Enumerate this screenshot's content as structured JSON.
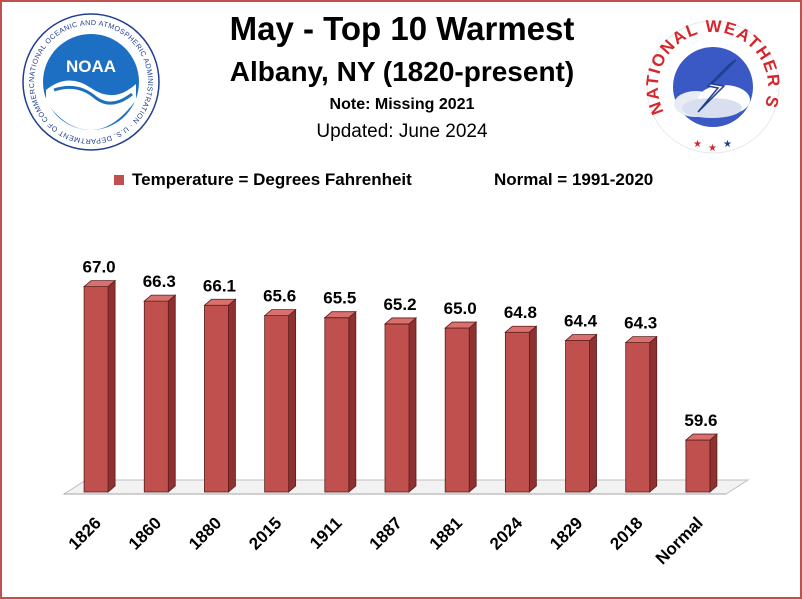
{
  "header": {
    "title": "May - Top 10 Warmest",
    "subtitle": "Albany, NY (1820-present)",
    "note": "Note: Missing 2021",
    "updated": "Updated:  June 2024"
  },
  "logos": {
    "noaa_text": "NOAA",
    "noaa_ring_text": "NATIONAL OCEANIC AND ATMOSPHERIC ADMINISTRATION · U.S. DEPARTMENT OF COMMERCE",
    "nws_ring_text": "NATIONAL WEATHER SERVICE"
  },
  "chart_data": {
    "type": "bar",
    "categories": [
      "1826",
      "1860",
      "1880",
      "2015",
      "1911",
      "1887",
      "1881",
      "2024",
      "1829",
      "2018",
      "Normal"
    ],
    "series": [
      {
        "name": "Temperature = Degrees Fahrenheit",
        "values": [
          67.0,
          66.3,
          66.1,
          65.6,
          65.5,
          65.2,
          65.0,
          64.8,
          64.4,
          64.3,
          59.6
        ],
        "labels": [
          "67.0",
          "66.3",
          "66.1",
          "65.6",
          "65.5",
          "65.2",
          "65.0",
          "64.8",
          "64.4",
          "64.3",
          "59.6"
        ]
      }
    ],
    "legend_note": "Normal = 1991-2020",
    "legend_position": "top",
    "bar_color": "#c0504d",
    "ylim": [
      57,
      67.8
    ],
    "grid": false
  }
}
